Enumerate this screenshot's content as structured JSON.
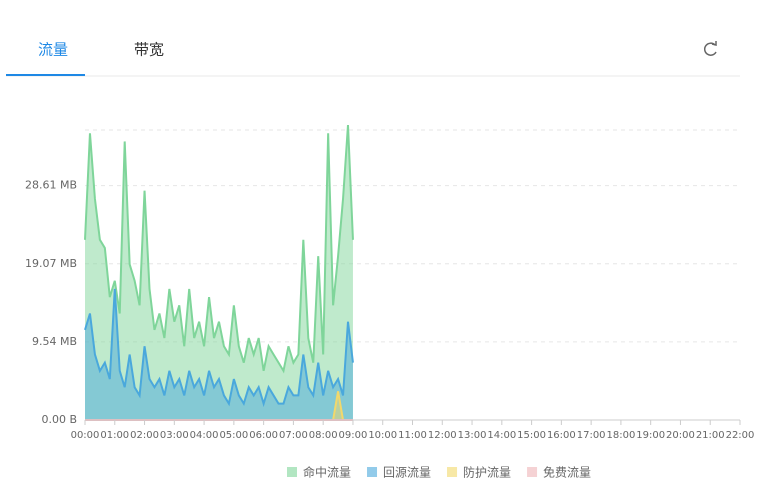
{
  "tabs": [
    "流量",
    "带宽"
  ],
  "chart_data": {
    "type": "area",
    "x": [
      0,
      10,
      20,
      30,
      40,
      50,
      60,
      70,
      80,
      90,
      100,
      110,
      120,
      130,
      140,
      150,
      160,
      170,
      180,
      190,
      200,
      210,
      220,
      230,
      240,
      250,
      260,
      270,
      280,
      290,
      300,
      310,
      320,
      330,
      340,
      350,
      360,
      370,
      380,
      390,
      400,
      410,
      420,
      430,
      440,
      450,
      460,
      470,
      480,
      490,
      500,
      510,
      520,
      530,
      540
    ],
    "xlim": [
      0,
      1320
    ],
    "xticks": [
      {
        "value": 0,
        "label": "00:00"
      },
      {
        "value": 60,
        "label": "01:00"
      },
      {
        "value": 120,
        "label": "02:00"
      },
      {
        "value": 180,
        "label": "03:00"
      },
      {
        "value": 240,
        "label": "04:00"
      },
      {
        "value": 300,
        "label": "05:00"
      },
      {
        "value": 360,
        "label": "06:00"
      },
      {
        "value": 420,
        "label": "07:00"
      },
      {
        "value": 480,
        "label": "08:00"
      },
      {
        "value": 540,
        "label": "09:00"
      },
      {
        "value": 600,
        "label": "10:00"
      },
      {
        "value": 660,
        "label": "11:00"
      },
      {
        "value": 720,
        "label": "12:00"
      },
      {
        "value": 780,
        "label": "13:00"
      },
      {
        "value": 840,
        "label": "14:00"
      },
      {
        "value": 900,
        "label": "15:00"
      },
      {
        "value": 960,
        "label": "16:00"
      },
      {
        "value": 1020,
        "label": "17:00"
      },
      {
        "value": 1080,
        "label": "18:00"
      },
      {
        "value": 1140,
        "label": "19:00"
      },
      {
        "value": 1200,
        "label": "20:00"
      },
      {
        "value": 1260,
        "label": "21:00"
      },
      {
        "value": 1320,
        "label": "22:00"
      }
    ],
    "ylim": [
      0,
      35.4
    ],
    "yticks": [
      {
        "value": 0,
        "label": "0.00 B"
      },
      {
        "value": 9.54,
        "label": "9.54 MB"
      },
      {
        "value": 19.07,
        "label": "19.07 MB"
      },
      {
        "value": 28.61,
        "label": "28.61 MB"
      }
    ],
    "grid": true,
    "series": [
      {
        "name": "命中流量",
        "color": "#7fd59a",
        "values": [
          22,
          35,
          27,
          22,
          21,
          15,
          17,
          13,
          34,
          19,
          17,
          14,
          28,
          16,
          11,
          13,
          10,
          16,
          12,
          14,
          9,
          16,
          10,
          12,
          9,
          15,
          10,
          12,
          9,
          8,
          14,
          9,
          7,
          10,
          8,
          10,
          6,
          9,
          8,
          7,
          6,
          9,
          7,
          8,
          22,
          10,
          7,
          20,
          8,
          35,
          14,
          20,
          27,
          36,
          22
        ]
      },
      {
        "name": "回源流量",
        "color": "#4aa8dc",
        "values": [
          11,
          13,
          8,
          6,
          7,
          5,
          16,
          6,
          4,
          8,
          4,
          3,
          9,
          5,
          4,
          5,
          3,
          6,
          4,
          5,
          3,
          6,
          4,
          5,
          3,
          6,
          4,
          5,
          3,
          2,
          5,
          3,
          2,
          4,
          3,
          4,
          2,
          4,
          3,
          2,
          2,
          4,
          3,
          3,
          8,
          4,
          3,
          7,
          3,
          6,
          4,
          5,
          3,
          12,
          7
        ]
      },
      {
        "name": "防护流量",
        "color": "#f2d86b",
        "values": [
          0,
          0,
          0,
          0,
          0,
          0,
          0,
          0,
          0,
          0,
          0,
          0,
          0,
          0,
          0,
          0,
          0,
          0,
          0,
          0,
          0,
          0,
          0,
          0,
          0,
          0,
          0,
          0,
          0,
          0,
          0,
          0,
          0,
          0,
          0,
          0,
          0,
          0,
          0,
          0,
          0,
          0,
          0,
          0,
          0,
          0,
          0,
          0,
          0,
          0,
          0,
          3.5,
          0,
          0,
          0
        ]
      },
      {
        "name": "免费流量",
        "color": "#eeb4b8",
        "values": [
          0,
          0,
          0,
          0,
          0,
          0,
          0,
          0,
          0,
          0,
          0,
          0,
          0,
          0,
          0,
          0,
          0,
          0,
          0,
          0,
          0,
          0,
          0,
          0,
          0,
          0,
          0,
          0,
          0,
          0,
          0,
          0,
          0,
          0,
          0,
          0,
          0,
          0,
          0,
          0,
          0,
          0,
          0,
          0,
          0,
          0,
          0,
          0,
          0,
          0,
          0,
          0,
          0,
          0,
          0
        ]
      }
    ]
  }
}
